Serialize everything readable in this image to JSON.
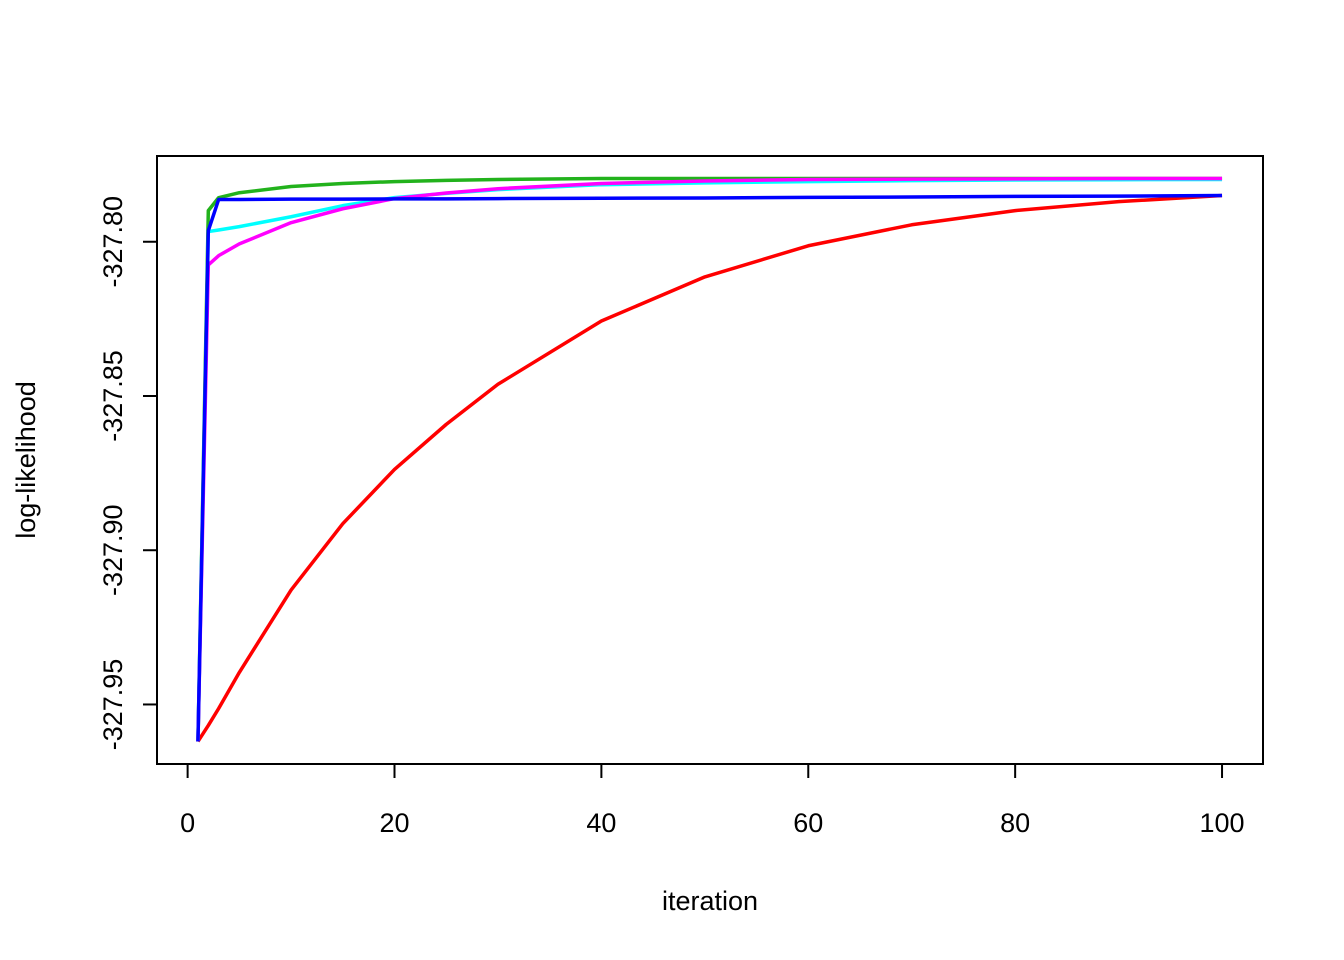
{
  "chart_data": {
    "type": "line",
    "xlabel": "iteration",
    "ylabel": "log-likelihood",
    "x": [
      1,
      2,
      3,
      5,
      10,
      15,
      20,
      25,
      30,
      40,
      50,
      60,
      70,
      80,
      90,
      100
    ],
    "series": [
      {
        "color": "#ff0000",
        "values": [
          -327.962,
          -327.9568,
          -327.9513,
          -327.9396,
          -327.9129,
          -327.8914,
          -327.8738,
          -327.8592,
          -327.8462,
          -327.8257,
          -327.8114,
          -327.8013,
          -327.7945,
          -327.7899,
          -327.787,
          -327.785
        ]
      },
      {
        "color": "#22b21c",
        "values": [
          -327.962,
          -327.7899,
          -327.7857,
          -327.7841,
          -327.7821,
          -327.7811,
          -327.7805,
          -327.7801,
          -327.7798,
          -327.7795,
          -327.7795,
          -327.7795,
          -327.7795,
          -327.7795,
          -327.7795,
          -327.7795
        ]
      },
      {
        "color": "#00ffff",
        "values": [
          -327.962,
          -327.7967,
          -327.7962,
          -327.7951,
          -327.7919,
          -327.7883,
          -327.7857,
          -327.7843,
          -327.7831,
          -327.7815,
          -327.7809,
          -327.7805,
          -327.7802,
          -327.78,
          -327.7799,
          -327.7798
        ]
      },
      {
        "color": "#ff00ff",
        "values": [
          -327.962,
          -327.8075,
          -327.8045,
          -327.8007,
          -327.7938,
          -327.7893,
          -327.786,
          -327.7842,
          -327.7828,
          -327.7811,
          -327.7803,
          -327.7798,
          -327.7797,
          -327.7796,
          -327.7795,
          -327.7795
        ]
      },
      {
        "color": "#0000ff",
        "values": [
          -327.962,
          -327.7964,
          -327.7863,
          -327.7863,
          -327.7862,
          -327.7862,
          -327.7861,
          -327.7861,
          -327.786,
          -327.7859,
          -327.7858,
          -327.7856,
          -327.7855,
          -327.7853,
          -327.7852,
          -327.785
        ]
      }
    ],
    "xlim": [
      -2.96,
      103.96
    ],
    "xticks": [
      0,
      20,
      40,
      60,
      80,
      100
    ],
    "ylim": [
      -327.9693,
      -327.7722
    ],
    "yticks": [
      -327.95,
      {
        "value": -327.9,
        "label": "-327.90"
      },
      -327.85,
      {
        "value": -327.8,
        "label": "-327.80"
      }
    ],
    "grid": false
  }
}
